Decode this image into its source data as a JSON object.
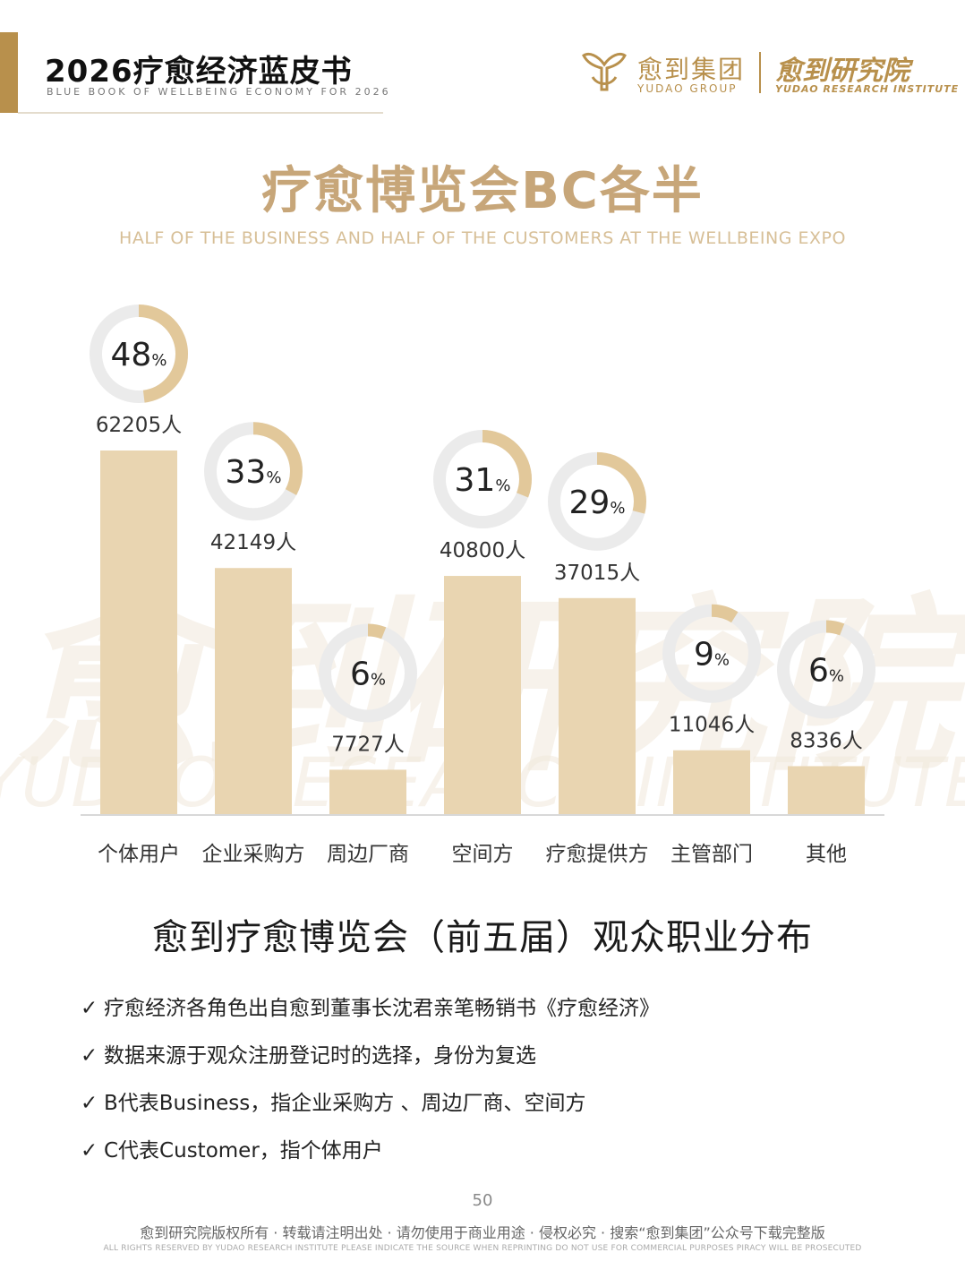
{
  "header": {
    "title": "2026疗愈经济蓝皮书",
    "subtitle": "BLUE BOOK OF WELLBEING ECONOMY FOR 2026",
    "group_name_cn": "愈到集团",
    "group_name_en": "YUDAO GROUP",
    "institute_cn": "愈到研究院",
    "institute_en": "YUDAO RESEARCH INSTITUTE",
    "brand_color": "#b8904c"
  },
  "main": {
    "title": "疗愈博览会BC各半",
    "subtitle": "HALF OF THE BUSINESS  AND HALF OF THE CUSTOMERS AT THE WELLBEING EXPO"
  },
  "watermark": {
    "cn": "愈到研究院",
    "en": "YUDAO RESEARCH INSTITUTE"
  },
  "chart_data": {
    "type": "bar",
    "title": "愈到疗愈博览会（前五届）观众职业分布",
    "categories": [
      "个体用户",
      "企业采购方",
      "周边厂商",
      "空间方",
      "疗愈提供方",
      "主管部门",
      "其他"
    ],
    "values": [
      62205,
      42149,
      7727,
      40800,
      37015,
      11046,
      8336
    ],
    "value_labels": [
      "62205人",
      "42149人",
      "7727人",
      "40800人",
      "37015人",
      "11046人",
      "8336人"
    ],
    "percentages": [
      48,
      33,
      6,
      31,
      29,
      9,
      6
    ],
    "percent_suffix": "%",
    "bar_color": "#e9d5b1",
    "ring_track_color": "#ebebeb",
    "ring_fill_color": "#e2c89a",
    "grid": false,
    "legend": "none"
  },
  "notes": [
    "疗愈经济各角色出自愈到董事长沈君亲笔畅销书《疗愈经济》",
    "数据来源于观众注册登记时的选择，身份为复选",
    "B代表Business，指企业采购方 、周边厂商、空间方",
    "C代表Customer，指个体用户"
  ],
  "note_marker": "✓",
  "footer": {
    "page_number": "50",
    "copyright": "愈到研究院版权所有 · 转载请注明出处 · 请勿使用于商业用途 · 侵权必究 · 搜索“愈到集团”公众号下载完整版",
    "copyright_en": "ALL RIGHTS RESERVED BY YUDAO RESEARCH INSTITUTE   PLEASE INDICATE THE SOURCE WHEN REPRINTING  DO NOT USE FOR COMMERCIAL PURPOSES  PIRACY WILL BE PROSECUTED"
  }
}
